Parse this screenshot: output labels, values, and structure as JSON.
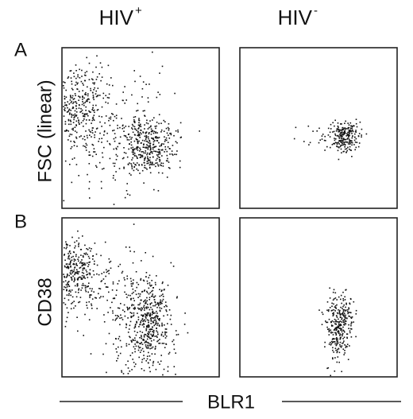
{
  "figure": {
    "columns": [
      {
        "text": "HIV",
        "superscript": "+"
      },
      {
        "text": "HIV",
        "superscript": "-"
      }
    ],
    "rows": [
      {
        "letter": "A",
        "y_label": "FSC (linear)"
      },
      {
        "letter": "B",
        "y_label": "CD38"
      }
    ],
    "x_label": "BLR1"
  }
}
